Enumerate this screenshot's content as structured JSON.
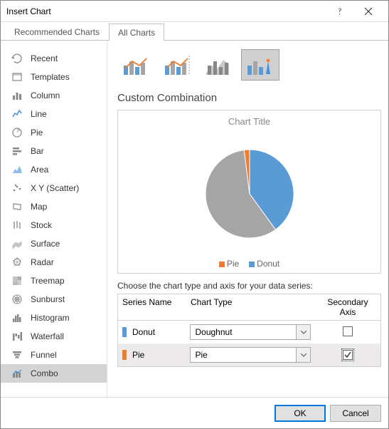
{
  "dialog": {
    "title": "Insert Chart"
  },
  "tabs": {
    "recommended": "Recommended Charts",
    "all": "All Charts",
    "active": "all"
  },
  "sidebar": {
    "items": [
      {
        "label": "Recent"
      },
      {
        "label": "Templates"
      },
      {
        "label": "Column"
      },
      {
        "label": "Line"
      },
      {
        "label": "Pie"
      },
      {
        "label": "Bar"
      },
      {
        "label": "Area"
      },
      {
        "label": "X Y (Scatter)"
      },
      {
        "label": "Map"
      },
      {
        "label": "Stock"
      },
      {
        "label": "Surface"
      },
      {
        "label": "Radar"
      },
      {
        "label": "Treemap"
      },
      {
        "label": "Sunburst"
      },
      {
        "label": "Histogram"
      },
      {
        "label": "Waterfall"
      },
      {
        "label": "Funnel"
      },
      {
        "label": "Combo"
      }
    ],
    "selected_index": 17
  },
  "main": {
    "section_title": "Custom Combination",
    "preview": {
      "title": "Chart Title",
      "type": "pie",
      "slices": [
        {
          "label": "Donut",
          "value": 40,
          "color": "#5b9bd5"
        },
        {
          "label": "Pie (grey)",
          "value": 58,
          "color": "#a5a5a5"
        },
        {
          "label": "Pie",
          "value": 2,
          "color": "#ed7d31"
        }
      ],
      "radius": 62,
      "background_color": "#ffffff",
      "legend": [
        {
          "label": "Pie",
          "color": "#ed7d31"
        },
        {
          "label": "Donut",
          "color": "#5b9bd5"
        }
      ]
    },
    "series_label": "Choose the chart type and axis for your data series:",
    "series_table": {
      "headers": {
        "name": "Series Name",
        "type": "Chart Type",
        "axis": "Secondary Axis"
      },
      "rows": [
        {
          "swatch": "#5b9bd5",
          "name": "Donut",
          "type": "Doughnut",
          "secondary": false
        },
        {
          "swatch": "#ed7d31",
          "name": "Pie",
          "type": "Pie",
          "secondary": true
        }
      ]
    }
  },
  "footer": {
    "ok": "OK",
    "cancel": "Cancel"
  }
}
